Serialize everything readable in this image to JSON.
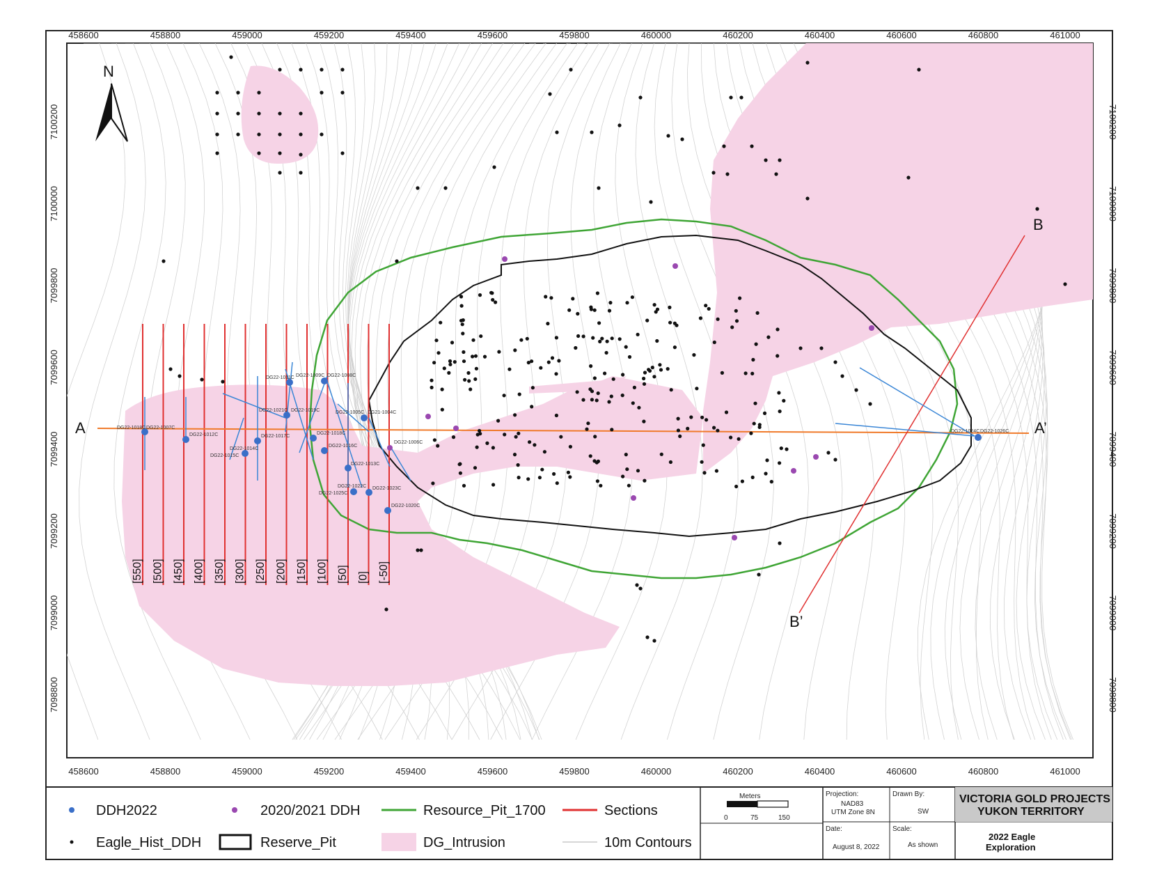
{
  "map": {
    "north_label": "N",
    "x_ticks": [
      "458600",
      "458800",
      "459000",
      "459200",
      "459400",
      "459600",
      "459800",
      "460000",
      "460200",
      "460400",
      "460600",
      "460800",
      "461000"
    ],
    "y_ticks": [
      "7100200",
      "7100000",
      "7099800",
      "7099600",
      "7099400",
      "7099200",
      "7099000",
      "7098800"
    ],
    "section_A": "A",
    "section_A_prime": "A’",
    "section_B": "B",
    "section_B_prime": "B’",
    "section_labels": [
      "[550]",
      "[500]",
      "[450]",
      "[400]",
      "[350]",
      "[300]",
      "[250]",
      "[200]",
      "[150]",
      "[100]",
      "[50]",
      "[0]",
      "[-50]"
    ],
    "drill_labels": [
      {
        "text": "DG22-1018C"
      },
      {
        "text": "DG22-1007C"
      },
      {
        "text": "DG22-1012C"
      },
      {
        "text": "DG22-1014C"
      },
      {
        "text": "DG22-1015C"
      },
      {
        "text": "DG22-1017C"
      },
      {
        "text": "DG22-1021C"
      },
      {
        "text": "DG22-1019C"
      },
      {
        "text": "DG22-1011C"
      },
      {
        "text": "DG22-1009C"
      },
      {
        "text": "DG22-1008C"
      },
      {
        "text": "DG22-1005C"
      },
      {
        "text": "DG21-1004C"
      },
      {
        "text": "DG22-1018C"
      },
      {
        "text": "DG22-1016C"
      },
      {
        "text": "DG22-1006C"
      },
      {
        "text": "DG22-1013C"
      },
      {
        "text": "DG22-1022C"
      },
      {
        "text": "DG22-1023C"
      },
      {
        "text": "DG22-1025C"
      },
      {
        "text": "DG22-1020C"
      },
      {
        "text": "DG22-1024C"
      },
      {
        "text": "DG22-1026C"
      }
    ],
    "colors": {
      "intrusion": "#f6d3e6",
      "resource_pit": "#3fa535",
      "reserve_pit": "#111111",
      "sections": "#e03030",
      "section_line_A": "#f07a2a",
      "ddh2022": "#3a6fc8",
      "ddh2020": "#9a48b0",
      "hist": "#111111",
      "contour": "#c9c9c9",
      "drill_trace": "#3a86d6"
    }
  },
  "legend": {
    "items": [
      {
        "label": "DDH2022"
      },
      {
        "label": "2020/2021 DDH"
      },
      {
        "label": "Resource_Pit_1700"
      },
      {
        "label": "Sections"
      },
      {
        "label": "Eagle_Hist_DDH"
      },
      {
        "label": "Reserve_Pit"
      },
      {
        "label": "DG_Intrusion"
      },
      {
        "label": "10m Contours"
      }
    ]
  },
  "scalebar": {
    "title": "Meters",
    "ticks": [
      "0",
      "75",
      "150"
    ]
  },
  "titleblock": {
    "projection_label": "Projection:",
    "projection_value_1": "NAD83",
    "projection_value_2": "UTM Zone 8N",
    "drawn_label": "Drawn By:",
    "drawn_value": "SW",
    "date_label": "Date:",
    "date_value": "August 8, 2022",
    "scale_label": "Scale:",
    "scale_value": "As shown",
    "company_1": "VICTORIA GOLD PROJECTS",
    "company_2": "YUKON TERRITORY",
    "project_1": "2022 Eagle",
    "project_2": "Exploration"
  }
}
